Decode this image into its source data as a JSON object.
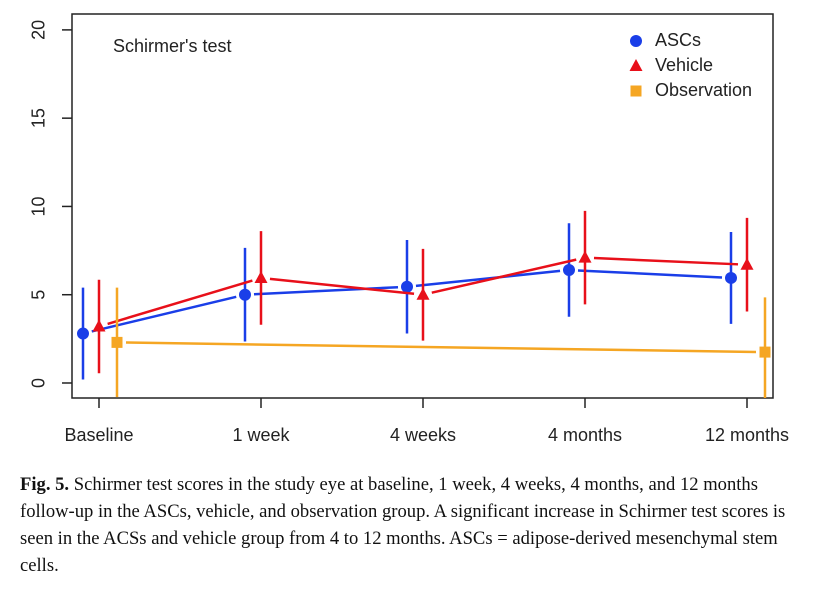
{
  "chart_data": {
    "type": "errorbar_line",
    "title": "Schirmer's test",
    "categories": [
      "Baseline",
      "1 week",
      "4 weeks",
      "4 months",
      "12 months"
    ],
    "series": [
      {
        "name": "ASCs",
        "color": "#1a3ee8",
        "marker": "circle",
        "values": [
          2.8,
          5.0,
          5.45,
          6.4,
          5.95
        ],
        "errors": [
          2.6,
          2.65,
          2.65,
          2.65,
          2.6
        ]
      },
      {
        "name": "Vehicle",
        "color": "#e8101a",
        "marker": "triangle",
        "values": [
          3.2,
          5.95,
          5.0,
          7.1,
          6.7
        ],
        "errors": [
          2.65,
          2.65,
          2.6,
          2.65,
          2.65
        ]
      },
      {
        "name": "Observation",
        "color": "#f5a623",
        "marker": "square",
        "values": [
          2.3,
          null,
          null,
          null,
          1.75
        ],
        "errors": [
          3.1,
          null,
          null,
          null,
          3.1
        ]
      }
    ],
    "ylim": [
      -0.85,
      20.9
    ],
    "yticks": [
      0,
      5,
      10,
      15,
      20
    ],
    "legend": "upper right",
    "caption": {
      "label": "Fig. 5.",
      "text": "Schirmer test scores in the study eye at baseline, 1 week, 4 weeks, 4 months, and 12 months follow-up in the ASCs, vehicle, and observation group. A significant increase in Schirmer test scores is seen in the ACSs and vehicle group from 4 to 12 months. ASCs = adipose-derived mesenchymal stem cells."
    }
  }
}
